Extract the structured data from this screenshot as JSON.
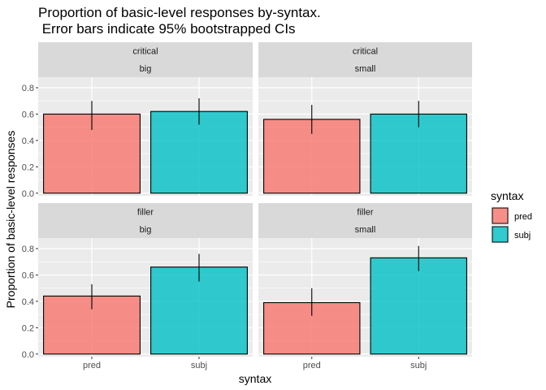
{
  "chart_data": {
    "type": "bar",
    "title": [
      "Proportion of basic-level responses by-syntax.",
      " Error bars indicate 95% bootstrapped CIs"
    ],
    "xlabel": "syntax",
    "ylabel": "Proportion of basic-level responses",
    "ylim": [
      -0.02,
      0.88
    ],
    "yticks": [
      0.0,
      0.2,
      0.4,
      0.6,
      0.8
    ],
    "ytick_labels": [
      "0.0",
      "0.2",
      "0.4",
      "0.6",
      "0.8"
    ],
    "categories": [
      "pred",
      "subj"
    ],
    "grid": true,
    "legend": {
      "title": "syntax",
      "position": "right",
      "entries": [
        {
          "label": "pred",
          "color": "#F8766D"
        },
        {
          "label": "subj",
          "color": "#00BFC4"
        }
      ]
    },
    "panels": [
      {
        "row": 0,
        "col": 0,
        "strip": [
          "critical",
          "big"
        ],
        "bars": [
          {
            "category": "pred",
            "value": 0.6,
            "ci_low": 0.48,
            "ci_high": 0.7
          },
          {
            "category": "subj",
            "value": 0.62,
            "ci_low": 0.52,
            "ci_high": 0.72
          }
        ]
      },
      {
        "row": 0,
        "col": 1,
        "strip": [
          "critical",
          "small"
        ],
        "bars": [
          {
            "category": "pred",
            "value": 0.56,
            "ci_low": 0.45,
            "ci_high": 0.67
          },
          {
            "category": "subj",
            "value": 0.6,
            "ci_low": 0.5,
            "ci_high": 0.7
          }
        ]
      },
      {
        "row": 1,
        "col": 0,
        "strip": [
          "filler",
          "big"
        ],
        "bars": [
          {
            "category": "pred",
            "value": 0.44,
            "ci_low": 0.34,
            "ci_high": 0.53
          },
          {
            "category": "subj",
            "value": 0.66,
            "ci_low": 0.55,
            "ci_high": 0.76
          }
        ]
      },
      {
        "row": 1,
        "col": 1,
        "strip": [
          "filler",
          "small"
        ],
        "bars": [
          {
            "category": "pred",
            "value": 0.39,
            "ci_low": 0.29,
            "ci_high": 0.5
          },
          {
            "category": "subj",
            "value": 0.73,
            "ci_low": 0.63,
            "ci_high": 0.82
          }
        ]
      }
    ]
  }
}
